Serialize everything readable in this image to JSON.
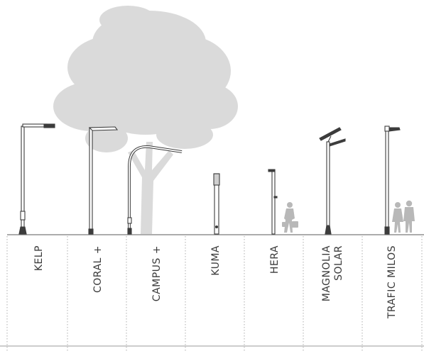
{
  "luminaires": [
    {
      "id": "kelp",
      "name": "KELP"
    },
    {
      "id": "coral",
      "name": "CORAL +"
    },
    {
      "id": "campus",
      "name": "CAMPUS +"
    },
    {
      "id": "kuma",
      "name": "KUMA"
    },
    {
      "id": "hera",
      "name": "HERA"
    },
    {
      "id": "magnolia",
      "name_lines": [
        "MAGNOLIA",
        "SOLAR"
      ]
    },
    {
      "id": "trafic",
      "name": "TRAFIC MILOS"
    }
  ],
  "colors": {
    "tree": "#dadada",
    "people": "#b8b8b8",
    "pole_stroke": "#3c3c3c",
    "divider": "#9a9a9a"
  }
}
